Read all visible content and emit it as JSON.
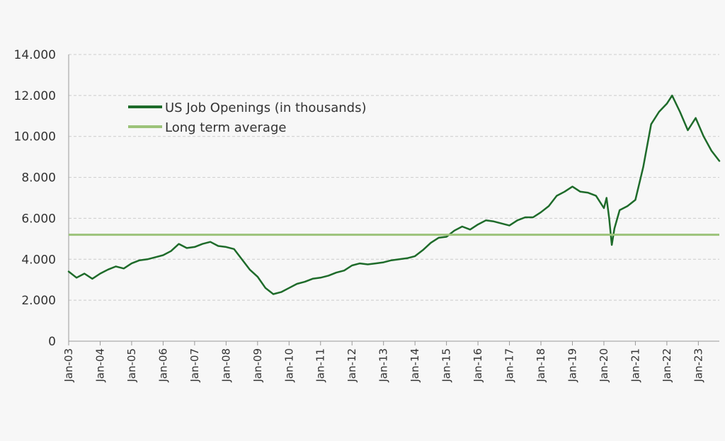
{
  "chart_data": {
    "type": "line",
    "title": "",
    "xlabel": "",
    "ylabel": "",
    "ylim": [
      0,
      14000
    ],
    "yticks": [
      0,
      2000,
      4000,
      6000,
      8000,
      10000,
      12000,
      14000
    ],
    "ytick_labels": [
      "0",
      "2.000",
      "4.000",
      "6.000",
      "8.000",
      "10.000",
      "12.000",
      "14.000"
    ],
    "xlim": [
      "2003-01",
      "2023-09"
    ],
    "xtick_labels": [
      "Jan-03",
      "Jan-04",
      "Jan-05",
      "Jan-06",
      "Jan-07",
      "Jan-08",
      "Jan-09",
      "Jan-10",
      "Jan-11",
      "Jan-12",
      "Jan-13",
      "Jan-14",
      "Jan-15",
      "Jan-16",
      "Jan-17",
      "Jan-18",
      "Jan-19",
      "Jan-20",
      "Jan-21",
      "Jan-22",
      "Jan-23"
    ],
    "grid": true,
    "legend_position": "top-left",
    "colors": {
      "openings": "#1e6b2a",
      "average": "#9cc37a",
      "grid": "#cccccc",
      "axis": "#999999"
    },
    "series": [
      {
        "name": "US Job Openings (in thousands)",
        "style": "line",
        "points": [
          [
            "2003-01",
            3400
          ],
          [
            "2003-04",
            3100
          ],
          [
            "2003-07",
            3300
          ],
          [
            "2003-10",
            3050
          ],
          [
            "2004-01",
            3300
          ],
          [
            "2004-04",
            3500
          ],
          [
            "2004-07",
            3650
          ],
          [
            "2004-10",
            3550
          ],
          [
            "2005-01",
            3800
          ],
          [
            "2005-04",
            3950
          ],
          [
            "2005-07",
            4000
          ],
          [
            "2005-10",
            4100
          ],
          [
            "2006-01",
            4200
          ],
          [
            "2006-04",
            4400
          ],
          [
            "2006-07",
            4750
          ],
          [
            "2006-10",
            4550
          ],
          [
            "2007-01",
            4600
          ],
          [
            "2007-04",
            4750
          ],
          [
            "2007-07",
            4850
          ],
          [
            "2007-10",
            4650
          ],
          [
            "2008-01",
            4600
          ],
          [
            "2008-04",
            4500
          ],
          [
            "2008-07",
            4000
          ],
          [
            "2008-10",
            3500
          ],
          [
            "2009-01",
            3150
          ],
          [
            "2009-04",
            2600
          ],
          [
            "2009-07",
            2300
          ],
          [
            "2009-10",
            2400
          ],
          [
            "2010-01",
            2600
          ],
          [
            "2010-04",
            2800
          ],
          [
            "2010-07",
            2900
          ],
          [
            "2010-10",
            3050
          ],
          [
            "2011-01",
            3100
          ],
          [
            "2011-04",
            3200
          ],
          [
            "2011-07",
            3350
          ],
          [
            "2011-10",
            3450
          ],
          [
            "2012-01",
            3700
          ],
          [
            "2012-04",
            3800
          ],
          [
            "2012-07",
            3750
          ],
          [
            "2012-10",
            3800
          ],
          [
            "2013-01",
            3850
          ],
          [
            "2013-04",
            3950
          ],
          [
            "2013-07",
            4000
          ],
          [
            "2013-10",
            4050
          ],
          [
            "2014-01",
            4150
          ],
          [
            "2014-04",
            4450
          ],
          [
            "2014-07",
            4800
          ],
          [
            "2014-10",
            5050
          ],
          [
            "2015-01",
            5100
          ],
          [
            "2015-04",
            5400
          ],
          [
            "2015-07",
            5600
          ],
          [
            "2015-10",
            5450
          ],
          [
            "2016-01",
            5700
          ],
          [
            "2016-04",
            5900
          ],
          [
            "2016-07",
            5850
          ],
          [
            "2016-10",
            5750
          ],
          [
            "2017-01",
            5650
          ],
          [
            "2017-04",
            5900
          ],
          [
            "2017-07",
            6050
          ],
          [
            "2017-10",
            6050
          ],
          [
            "2018-01",
            6300
          ],
          [
            "2018-04",
            6600
          ],
          [
            "2018-07",
            7100
          ],
          [
            "2018-10",
            7300
          ],
          [
            "2019-01",
            7550
          ],
          [
            "2019-04",
            7300
          ],
          [
            "2019-07",
            7250
          ],
          [
            "2019-10",
            7100
          ],
          [
            "2020-01",
            6500
          ],
          [
            "2020-02",
            7000
          ],
          [
            "2020-03",
            6000
          ],
          [
            "2020-04",
            4700
          ],
          [
            "2020-05",
            5500
          ],
          [
            "2020-07",
            6400
          ],
          [
            "2020-10",
            6600
          ],
          [
            "2021-01",
            6900
          ],
          [
            "2021-04",
            8500
          ],
          [
            "2021-07",
            10600
          ],
          [
            "2021-10",
            11200
          ],
          [
            "2022-01",
            11600
          ],
          [
            "2022-03",
            12000
          ],
          [
            "2022-06",
            11200
          ],
          [
            "2022-09",
            10300
          ],
          [
            "2022-12",
            10900
          ],
          [
            "2023-03",
            10000
          ],
          [
            "2023-06",
            9300
          ],
          [
            "2023-09",
            8800
          ]
        ]
      },
      {
        "name": "Long term average",
        "style": "horizontal",
        "value": 5200
      }
    ]
  }
}
